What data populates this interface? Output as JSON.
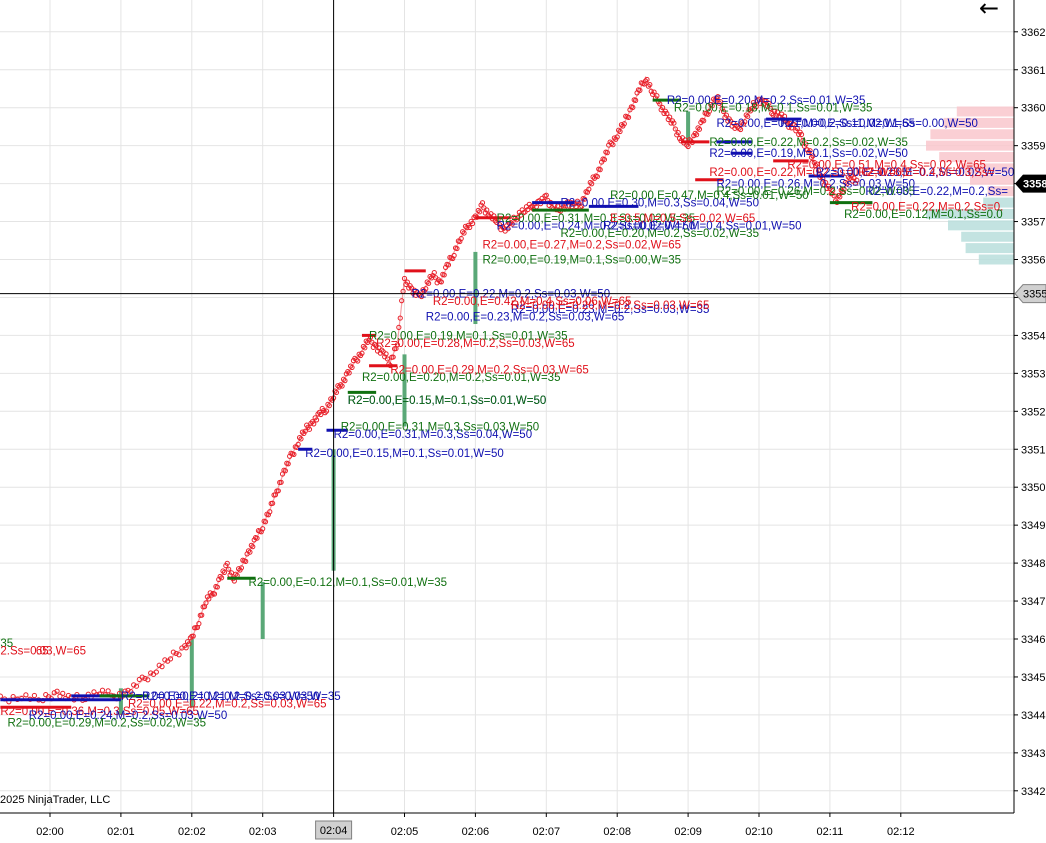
{
  "copyright": "2025 NinjaTrader, LLC",
  "back_icon": "back-arrow-icon",
  "colors": {
    "grid": "#e4e4e4",
    "price_dots": "#e8202a",
    "price_line": "#f4a0a4",
    "volume_bar": "#5aa877",
    "level_red": "#e0101a",
    "level_blue": "#1010b0",
    "level_green": "#107010",
    "crosshair": "#000000",
    "profile_pink": "#f9c7cc",
    "profile_teal": "#b9dedc"
  },
  "chart_data": {
    "type": "scatter",
    "x_axis": {
      "ticks": [
        "02:00",
        "02:01",
        "02:02",
        "02:03",
        "02:04",
        "02:05",
        "02:06",
        "02:07",
        "02:08",
        "02:09",
        "02:10",
        "02:11",
        "02:12"
      ],
      "crosshair_label": "02:04"
    },
    "y_axis": {
      "range": [
        3341.6,
        3362.3
      ],
      "ticks": [
        3342,
        3343,
        3344,
        3345,
        3346,
        3347,
        3348,
        3349,
        3350,
        3351,
        3352,
        3353,
        3354,
        3355,
        3356,
        3357,
        3358,
        3359,
        3360,
        3361,
        3362
      ],
      "tick_labels": [
        "3342",
        "3343",
        "3344",
        "3345",
        "3346",
        "3347",
        "3348",
        "3349",
        "3350",
        "3351",
        "3352",
        "3353",
        "3354",
        "3355",
        "3356",
        "3357",
        "3358",
        "3359",
        "3360",
        "3361",
        "3362"
      ],
      "last_price_label": "3358",
      "crosshair_label": "3355"
    },
    "crosshair": {
      "time_min": 4.0,
      "price": 3355.1
    },
    "price_path": [
      [
        -0.7,
        3344.4
      ],
      [
        -0.4,
        3344.5
      ],
      [
        -0.1,
        3344.4
      ],
      [
        0.1,
        3344.6
      ],
      [
        0.3,
        3344.4
      ],
      [
        0.5,
        3344.5
      ],
      [
        0.7,
        3344.6
      ],
      [
        0.9,
        3344.5
      ],
      [
        1.1,
        3344.6
      ],
      [
        1.3,
        3344.9
      ],
      [
        1.5,
        3345.2
      ],
      [
        1.7,
        3345.5
      ],
      [
        1.9,
        3345.8
      ],
      [
        2.0,
        3346.0
      ],
      [
        2.1,
        3346.5
      ],
      [
        2.2,
        3347.0
      ],
      [
        2.3,
        3347.2
      ],
      [
        2.4,
        3347.6
      ],
      [
        2.5,
        3347.9
      ],
      [
        2.6,
        3347.6
      ],
      [
        2.7,
        3347.9
      ],
      [
        2.8,
        3348.3
      ],
      [
        2.9,
        3348.6
      ],
      [
        3.0,
        3349.0
      ],
      [
        3.1,
        3349.4
      ],
      [
        3.2,
        3349.9
      ],
      [
        3.3,
        3350.4
      ],
      [
        3.4,
        3350.8
      ],
      [
        3.5,
        3351.2
      ],
      [
        3.6,
        3351.5
      ],
      [
        3.7,
        3351.7
      ],
      [
        3.8,
        3351.9
      ],
      [
        3.9,
        3352.1
      ],
      [
        4.0,
        3352.4
      ],
      [
        4.1,
        3352.7
      ],
      [
        4.2,
        3353.0
      ],
      [
        4.3,
        3353.3
      ],
      [
        4.4,
        3353.6
      ],
      [
        4.5,
        3353.9
      ],
      [
        4.6,
        3353.7
      ],
      [
        4.7,
        3353.5
      ],
      [
        4.8,
        3353.3
      ],
      [
        4.9,
        3353.8
      ],
      [
        5.0,
        3355.5
      ],
      [
        5.1,
        3355.2
      ],
      [
        5.2,
        3355.0
      ],
      [
        5.3,
        3355.3
      ],
      [
        5.4,
        3355.6
      ],
      [
        5.5,
        3355.4
      ],
      [
        5.6,
        3355.8
      ],
      [
        5.7,
        3356.2
      ],
      [
        5.8,
        3356.6
      ],
      [
        5.9,
        3356.9
      ],
      [
        6.0,
        3357.1
      ],
      [
        6.1,
        3357.4
      ],
      [
        6.2,
        3357.2
      ],
      [
        6.3,
        3357.0
      ],
      [
        6.4,
        3356.8
      ],
      [
        6.5,
        3356.9
      ],
      [
        6.6,
        3357.2
      ],
      [
        6.7,
        3357.3
      ],
      [
        6.8,
        3357.4
      ],
      [
        6.9,
        3357.5
      ],
      [
        7.0,
        3357.6
      ],
      [
        7.1,
        3357.4
      ],
      [
        7.2,
        3357.3
      ],
      [
        7.3,
        3357.5
      ],
      [
        7.4,
        3357.4
      ],
      [
        7.5,
        3357.5
      ],
      [
        7.6,
        3357.9
      ],
      [
        7.7,
        3358.2
      ],
      [
        7.8,
        3358.6
      ],
      [
        7.9,
        3359.0
      ],
      [
        8.0,
        3359.3
      ],
      [
        8.1,
        3359.6
      ],
      [
        8.2,
        3360.0
      ],
      [
        8.3,
        3360.4
      ],
      [
        8.4,
        3360.8
      ],
      [
        8.5,
        3360.4
      ],
      [
        8.6,
        3360.1
      ],
      [
        8.7,
        3359.8
      ],
      [
        8.8,
        3359.5
      ],
      [
        8.9,
        3359.2
      ],
      [
        9.0,
        3359.0
      ],
      [
        9.1,
        3359.3
      ],
      [
        9.2,
        3359.6
      ],
      [
        9.3,
        3360.0
      ],
      [
        9.4,
        3360.3
      ],
      [
        9.5,
        3359.9
      ],
      [
        9.6,
        3359.6
      ],
      [
        9.7,
        3359.4
      ],
      [
        9.8,
        3359.7
      ],
      [
        9.9,
        3360.0
      ],
      [
        10.0,
        3360.2
      ],
      [
        10.1,
        3360.1
      ],
      [
        10.2,
        3359.9
      ],
      [
        10.3,
        3359.8
      ],
      [
        10.4,
        3359.6
      ],
      [
        10.5,
        3359.5
      ],
      [
        10.6,
        3359.2
      ],
      [
        10.7,
        3358.9
      ],
      [
        10.8,
        3358.5
      ],
      [
        10.9,
        3358.1
      ],
      [
        11.0,
        3357.8
      ],
      [
        11.1,
        3357.6
      ],
      [
        11.2,
        3357.9
      ],
      [
        11.3,
        3358.2
      ],
      [
        11.4,
        3358.0
      ]
    ],
    "volume_bars": [
      {
        "t": 1.0,
        "from": 3344.0,
        "to": 3344.7
      },
      {
        "t": 2.0,
        "from": 3344.2,
        "to": 3346.0
      },
      {
        "t": 3.0,
        "from": 3346.0,
        "to": 3347.5
      },
      {
        "t": 4.0,
        "from": 3347.8,
        "to": 3351.0
      },
      {
        "t": 5.0,
        "from": 3351.6,
        "to": 3353.5
      },
      {
        "t": 6.0,
        "from": 3354.3,
        "to": 3356.2
      },
      {
        "t": 9.0,
        "from": 3359.0,
        "to": 3359.9
      }
    ],
    "levels": [
      {
        "t0": -0.7,
        "t1": 0.3,
        "p": 3344.2,
        "color": "red"
      },
      {
        "t0": -0.7,
        "t1": 1.0,
        "p": 3344.4,
        "color": "blue"
      },
      {
        "t0": 0.3,
        "t1": 1.3,
        "p": 3344.5,
        "color": "blue"
      },
      {
        "t0": 0.7,
        "t1": 1.4,
        "p": 3344.5,
        "color": "green"
      },
      {
        "t0": 2.5,
        "t1": 2.9,
        "p": 3347.6,
        "color": "green"
      },
      {
        "t0": 3.5,
        "t1": 3.7,
        "p": 3351.0,
        "color": "blue"
      },
      {
        "t0": 3.9,
        "t1": 4.2,
        "p": 3351.5,
        "color": "blue"
      },
      {
        "t0": 4.2,
        "t1": 4.6,
        "p": 3352.5,
        "color": "green"
      },
      {
        "t0": 4.4,
        "t1": 4.6,
        "p": 3354.0,
        "color": "red"
      },
      {
        "t0": 4.5,
        "t1": 4.9,
        "p": 3353.2,
        "color": "red"
      },
      {
        "t0": 5.0,
        "t1": 5.3,
        "p": 3355.7,
        "color": "red"
      },
      {
        "t0": 6.0,
        "t1": 6.5,
        "p": 3357.1,
        "color": "red"
      },
      {
        "t0": 6.8,
        "t1": 7.4,
        "p": 3357.5,
        "color": "blue"
      },
      {
        "t0": 6.8,
        "t1": 7.6,
        "p": 3357.3,
        "color": "green"
      },
      {
        "t0": 7.6,
        "t1": 8.3,
        "p": 3357.4,
        "color": "blue"
      },
      {
        "t0": 8.5,
        "t1": 8.9,
        "p": 3360.2,
        "color": "green"
      },
      {
        "t0": 8.9,
        "t1": 9.3,
        "p": 3359.1,
        "color": "red"
      },
      {
        "t0": 9.1,
        "t1": 9.5,
        "p": 3358.1,
        "color": "red"
      },
      {
        "t0": 9.4,
        "t1": 9.9,
        "p": 3359.1,
        "color": "blue"
      },
      {
        "t0": 9.6,
        "t1": 9.9,
        "p": 3358.8,
        "color": "blue"
      },
      {
        "t0": 10.1,
        "t1": 10.6,
        "p": 3359.7,
        "color": "blue"
      },
      {
        "t0": 10.2,
        "t1": 10.7,
        "p": 3358.6,
        "color": "red"
      },
      {
        "t0": 10.7,
        "t1": 11.2,
        "p": 3358.2,
        "color": "blue"
      },
      {
        "t0": 11.0,
        "t1": 11.6,
        "p": 3357.5,
        "color": "green"
      }
    ],
    "annotations": [
      {
        "t": -0.7,
        "p": 3345.9,
        "color": "green",
        "text": "35"
      },
      {
        "t": -0.7,
        "p": 3345.7,
        "color": "red",
        "text": "2.Ss=0.03,W=65"
      },
      {
        "t": -0.2,
        "p": 3345.7,
        "color": "red",
        "text": "65"
      },
      {
        "t": -0.7,
        "p": 3344.1,
        "color": "red",
        "text": "R2=0.00,E=0.36,M=0.3,Ss=0.05,W=65"
      },
      {
        "t": -0.3,
        "p": 3344.0,
        "color": "blue",
        "text": "R2=0.00,E=0.24,M=0.2,Ss=0.03,W=50"
      },
      {
        "t": -0.6,
        "p": 3343.8,
        "color": "green",
        "text": "R2=0.00,E=0.29,M=0.2,Ss=0.02,W=35"
      },
      {
        "t": 1.0,
        "p": 3344.5,
        "color": "blue",
        "text": "R2=0.00,E=0.21,M=0.2,Ss=0.03,W=50"
      },
      {
        "t": 1.1,
        "p": 3344.3,
        "color": "red",
        "text": "R2=0.00,E=0.22,M=0.2,Ss=0.03,W=65"
      },
      {
        "t": 1.3,
        "p": 3344.5,
        "color": "blue",
        "text": "R2=0.00,E=0.21,M=0.2,Ss=0.03,W=35"
      },
      {
        "t": 2.8,
        "p": 3347.5,
        "color": "green",
        "text": "R2=0.00,E=0.12,M=0.1,Ss=0.01,W=35"
      },
      {
        "t": 3.6,
        "p": 3350.9,
        "color": "blue",
        "text": "R2=0.00,E=0.15,M=0.1,Ss=0.01,W=50"
      },
      {
        "t": 4.0,
        "p": 3351.4,
        "color": "blue",
        "text": "R2=0.00,E=0.31,M=0.3,Ss=0.04,W=50"
      },
      {
        "t": 4.1,
        "p": 3351.6,
        "color": "green",
        "text": "R2=0.00,E=0.31,M=0.3,Ss=0.03,W=50"
      },
      {
        "t": 4.2,
        "p": 3352.3,
        "color": "blue",
        "text": "R2=0.00,E=0.15,M=0.1,Ss=0.01,W=50"
      },
      {
        "t": 4.2,
        "p": 3352.3,
        "color": "green",
        "text": "R2=0.00,E=0.15,M=0.1,Ss=0.01,W=50"
      },
      {
        "t": 4.4,
        "p": 3352.9,
        "color": "green",
        "text": "R2=0.00,E=0.20,M=0.2,Ss=0.01,W=35"
      },
      {
        "t": 4.8,
        "p": 3353.1,
        "color": "red",
        "text": "R2=0.00,E=0.29,M=0.2,Ss=0.03,W=65"
      },
      {
        "t": 4.6,
        "p": 3353.8,
        "color": "red",
        "text": "R2=0.00,E=0.28,M=0.2,Ss=0.03,W=65"
      },
      {
        "t": 4.5,
        "p": 3354.0,
        "color": "green",
        "text": "R2=0.00,E=0.19,M=0.1,Ss=0.01,W=35"
      },
      {
        "t": 5.1,
        "p": 3355.1,
        "color": "blue",
        "text": "R2=0.00,E=0.22,M=0.2,Ss=0.03,W=50"
      },
      {
        "t": 5.4,
        "p": 3354.9,
        "color": "red",
        "text": "R2=0.00,E=0.42,M=0.4,Ss=0.06,W=65"
      },
      {
        "t": 5.3,
        "p": 3354.5,
        "color": "blue",
        "text": "R2=0.00,E=0.23,M=0.2,Ss=0.03,W=65"
      },
      {
        "t": 6.5,
        "p": 3354.7,
        "color": "blue",
        "text": "R2=0.00,E=0.23,M=0.2,Ss=0.03,W=35"
      },
      {
        "t": 6.5,
        "p": 3354.8,
        "color": "red",
        "text": "R2=0.00,E=0.20,M=0.2,Ss=0.03,W=65"
      },
      {
        "t": 6.1,
        "p": 3356.0,
        "color": "green",
        "text": "R2=0.00,E=0.19,M=0.1,Ss=0.00,W=35"
      },
      {
        "t": 6.1,
        "p": 3356.4,
        "color": "red",
        "text": "R2=0.00,E=0.27,M=0.2,Ss=0.02,W=65"
      },
      {
        "t": 6.3,
        "p": 3356.9,
        "color": "blue",
        "text": "R2=0.00,E=0.24,M=0.2,Ss=0.02,W=50"
      },
      {
        "t": 6.3,
        "p": 3357.1,
        "color": "green",
        "text": "R2=0.00,E=0.31,M=0.3,Ss=0.02,W=35"
      },
      {
        "t": 7.2,
        "p": 3356.7,
        "color": "green",
        "text": "R2=0.00,E=0.20,M=0.2,Ss=0.02,W=35"
      },
      {
        "t": 7.8,
        "p": 3356.9,
        "color": "blue",
        "text": "R2=0.00,E=0.47,M=0.4,Ss=0.01,W=50"
      },
      {
        "t": 7.9,
        "p": 3357.1,
        "color": "red",
        "text": "E=0.5,M=0.5,Ss=0.02,W=65"
      },
      {
        "t": 7.2,
        "p": 3357.5,
        "color": "blue",
        "text": "R2=0.00,E=0.30,M=0.3,Ss=0.04,W=50"
      },
      {
        "t": 7.9,
        "p": 3357.7,
        "color": "green",
        "text": "R2=0.00,E=0.47,M=0.4,Ss=0.01,W=50"
      },
      {
        "t": 8.7,
        "p": 3360.2,
        "color": "blue",
        "text": "R2=0.00,E=0.20,M=0.2,Ss=0.01,W=35"
      },
      {
        "t": 8.8,
        "p": 3360.0,
        "color": "green",
        "text": "R2=0.00,E=0.18,M=0.1,Ss=0.01,W=35"
      },
      {
        "t": 9.4,
        "p": 3359.6,
        "color": "blue",
        "text": "R2=0.00,E=0.21,M=0.2,Ss=0.02,W=65"
      },
      {
        "t": 10.3,
        "p": 3359.6,
        "color": "blue",
        "text": "R2=0.00,E=0.11,M=0.1,Ss=0.00,W=50"
      },
      {
        "t": 9.3,
        "p": 3359.1,
        "color": "green",
        "text": "R2=0.00,E=0.22,M=0.2,Ss=0.02,W=35"
      },
      {
        "t": 9.3,
        "p": 3358.8,
        "color": "blue",
        "text": "R2=0.00,E=0.19,M=0.1,Ss=0.02,W=50"
      },
      {
        "t": 9.3,
        "p": 3358.3,
        "color": "red",
        "text": "R2=0.00,E=0.22,M=0.2,Ss=0.02,W=65"
      },
      {
        "t": 9.4,
        "p": 3358.0,
        "color": "blue",
        "text": "R2=0.00,E=0.26,M=0.2,Ss=0.03,W=50"
      },
      {
        "t": 9.4,
        "p": 3357.8,
        "color": "green",
        "text": "R2=0.00,E=0.26,M=0.2,Ss=0.02,W=35"
      },
      {
        "t": 10.4,
        "p": 3358.5,
        "color": "red",
        "text": "R2=0.00,E=0.51,M=0.4,Ss=0.02,W=65"
      },
      {
        "t": 10.8,
        "p": 3358.3,
        "color": "blue",
        "text": "R2=0.00,E=0.23,M=0.2,Ss=0.02,W=50"
      },
      {
        "t": 11.4,
        "p": 3358.3,
        "color": "red",
        "text": "R2=0.00,E=0.4,M=0.3,Ss="
      },
      {
        "t": 11.5,
        "p": 3357.8,
        "color": "blue",
        "text": "R2=0.00,E=0.22,M=0.2,Ss="
      },
      {
        "t": 11.3,
        "p": 3357.4,
        "color": "red",
        "text": "R2=0.00,E=0.22,M=0.2,Ss=0."
      },
      {
        "t": 11.2,
        "p": 3357.2,
        "color": "green",
        "text": "R2=0.00,E=0.12,M=0.1,Ss=0.0"
      }
    ],
    "volume_profile": [
      {
        "p": 3359.9,
        "len": 0.65,
        "color": "pink"
      },
      {
        "p": 3359.6,
        "len": 0.8,
        "color": "pink"
      },
      {
        "p": 3359.3,
        "len": 0.95,
        "color": "pink"
      },
      {
        "p": 3359.0,
        "len": 1.0,
        "color": "pink"
      },
      {
        "p": 3358.7,
        "len": 0.85,
        "color": "pink"
      },
      {
        "p": 3358.4,
        "len": 0.6,
        "color": "pink"
      },
      {
        "p": 3358.1,
        "len": 0.5,
        "color": "pink"
      },
      {
        "p": 3357.8,
        "len": 0.3,
        "color": "pink"
      },
      {
        "p": 3357.5,
        "len": 0.35,
        "color": "teal"
      },
      {
        "p": 3357.2,
        "len": 1.0,
        "color": "teal"
      },
      {
        "p": 3356.9,
        "len": 0.75,
        "color": "teal"
      },
      {
        "p": 3356.6,
        "len": 0.6,
        "color": "teal"
      },
      {
        "p": 3356.3,
        "len": 0.55,
        "color": "teal"
      },
      {
        "p": 3356.0,
        "len": 0.4,
        "color": "teal"
      }
    ]
  }
}
